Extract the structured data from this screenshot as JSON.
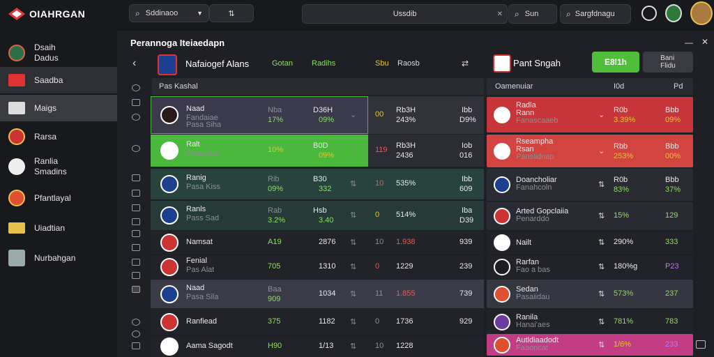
{
  "header": {
    "logo_text": "OIAHRGAN",
    "search1": "Sddinaoo",
    "search2": "Ussdib",
    "search3": "Sun",
    "search4": "Sargfdnagu"
  },
  "sidebar": {
    "items": [
      {
        "label": "Dsaih\nDadus",
        "icon": "shield-icon"
      },
      {
        "label": "Saadba",
        "icon": "flag-icon"
      },
      {
        "label": "Maigs",
        "icon": "list-icon"
      },
      {
        "label": "Rarsa",
        "icon": "shield-icon"
      },
      {
        "label": "Ranlia\nSmadins",
        "icon": "ball-icon"
      },
      {
        "label": "Pfantlayal",
        "icon": "shield-icon"
      },
      {
        "label": "Uiadtian",
        "icon": "stripes-icon"
      },
      {
        "label": "Nurbahgan",
        "icon": "puzzle-icon"
      }
    ]
  },
  "panel": {
    "title": "Perannoga Iteiaedapn",
    "match_team": "Nafaiogef Alans",
    "col_a": "Gotan",
    "col_b": "Radihs",
    "col_c": "Sbu",
    "col_d": "Raosb",
    "right_team": "Pant Sngah",
    "btn_primary": "E8l1h",
    "btn_secondary": "Bani\nFlidu",
    "left_hdr": "Pas Kashal",
    "right_hdr1": "Oamenuiar",
    "right_hdr2": "I0d",
    "right_hdr3": "Pd"
  },
  "left_rows": [
    {
      "name": "Naad",
      "sub": "Fandaiae",
      "sub2": "Pasa Siha",
      "c1": "Nba",
      "c1v": "17%",
      "c2": "D36H",
      "c2v": "09%",
      "c3": "00",
      "c4": "Rb3H",
      "c4v": "243%",
      "c5": "Ibb",
      "c5v": "D9%",
      "theme": "purple"
    },
    {
      "name": "Ralt",
      "sub": "Fosa Sba",
      "sub2": "",
      "c1": "",
      "c1v": "10%",
      "c2": "B0D",
      "c2v": "09%",
      "c3": "119",
      "c4": "Rb3H",
      "c4v": "2436",
      "c5": "Iob",
      "c5v": "016",
      "theme": "green"
    },
    {
      "name": "Ranig",
      "sub": "Pasa Kiss",
      "sub2": "",
      "c1": "Rib",
      "c1v": "09%",
      "c2": "B30",
      "c2v": "332",
      "c3": "10",
      "c4": "",
      "c4v": "535%",
      "c5": "Ibb",
      "c5v": "609",
      "theme": "teal"
    },
    {
      "name": "Ranls",
      "sub": "Pass Sad",
      "sub2": "",
      "c1": "Rab",
      "c1v": "3.2%",
      "c2": "Hsb",
      "c2v": "3.40",
      "c3": "0",
      "c4": "",
      "c4v": "514%",
      "c5": "Iba",
      "c5v": "D39",
      "theme": "teal2"
    },
    {
      "name": "Namsat",
      "sub": "",
      "sub2": "",
      "c1": "",
      "c1v": "A19",
      "c2": "",
      "c2v": "2876",
      "c3": "10",
      "c4": "",
      "c4v": "1.938",
      "c5": "",
      "c5v": "939",
      "theme": "plain"
    },
    {
      "name": "Fenial",
      "sub": "Pas Alat",
      "sub2": "",
      "c1": "",
      "c1v": "705",
      "c2": "",
      "c2v": "1310",
      "c3": "0",
      "c4": "",
      "c4v": "1229",
      "c5": "",
      "c5v": "239",
      "theme": "plain"
    },
    {
      "name": "Naad",
      "sub": "Pasa Sila",
      "sub2": "",
      "c1": "Baa",
      "c1v": "909",
      "c2": "",
      "c2v": "1034",
      "c3": "11",
      "c4": "",
      "c4v": "1.855",
      "c5": "",
      "c5v": "739",
      "theme": "hl"
    },
    {
      "name": "Ranfiead",
      "sub": "",
      "sub2": "",
      "c1": "",
      "c1v": "375",
      "c2": "",
      "c2v": "1182",
      "c3": "0",
      "c4": "",
      "c4v": "1736",
      "c5": "",
      "c5v": "929",
      "theme": "plain"
    },
    {
      "name": "Aama Sagodt",
      "sub": "",
      "sub2": "",
      "c1": "",
      "c1v": "H90",
      "c2": "",
      "c2v": "1/13",
      "c3": "10",
      "c4": "",
      "c4v": "1228",
      "c5": "",
      "c5v": "",
      "theme": "plain"
    }
  ],
  "right_rows": [
    {
      "name": "Radla",
      "sub": "Rann",
      "sub2": "Fanascaaeb",
      "c1": "R0b",
      "c1v": "3.39%",
      "c2": "Bbb",
      "c2v": "09%",
      "theme": "red"
    },
    {
      "name": "Rseampha",
      "sub": "Rsan",
      "sub2": "Panslidnap",
      "c1": "Rbb",
      "c1v": "253%",
      "c2": "Bbb",
      "c2v": "00%",
      "theme": "red2"
    },
    {
      "name": "Doancholiar",
      "sub": "Fanahcoln",
      "sub2": "",
      "c1": "R0b",
      "c1v": "83%",
      "c2": "Bbb",
      "c2v": "37%",
      "theme": "dark"
    },
    {
      "name": "Arted Gopclaiia",
      "sub": "Penarddo",
      "sub2": "",
      "c1": "",
      "c1v": "15%",
      "c2": "",
      "c2v": "129",
      "theme": "dark2"
    },
    {
      "name": "Nailt",
      "sub": "",
      "sub2": "",
      "c1": "",
      "c1v": "290%",
      "c2": "",
      "c2v": "333",
      "theme": "plain"
    },
    {
      "name": "Rarfan",
      "sub": "Fao a bas",
      "sub2": "",
      "c1": "",
      "c1v": "180%g",
      "c2": "",
      "c2v": "P23",
      "theme": "plain"
    },
    {
      "name": "Sedan",
      "sub": "Pasaiidau",
      "sub2": "",
      "c1": "",
      "c1v": "573%",
      "c2": "",
      "c2v": "237",
      "theme": "hl"
    },
    {
      "name": "Ranila",
      "sub": "Hanai'aes",
      "sub2": "",
      "c1": "",
      "c1v": "781%",
      "c2": "",
      "c2v": "783",
      "theme": "plain"
    },
    {
      "name": "Autldiaadodt",
      "sub": "Faaoncat",
      "sub2": "",
      "c1": "",
      "c1v": "1/6%",
      "c2": "",
      "c2v": "233",
      "theme": "pink"
    }
  ]
}
